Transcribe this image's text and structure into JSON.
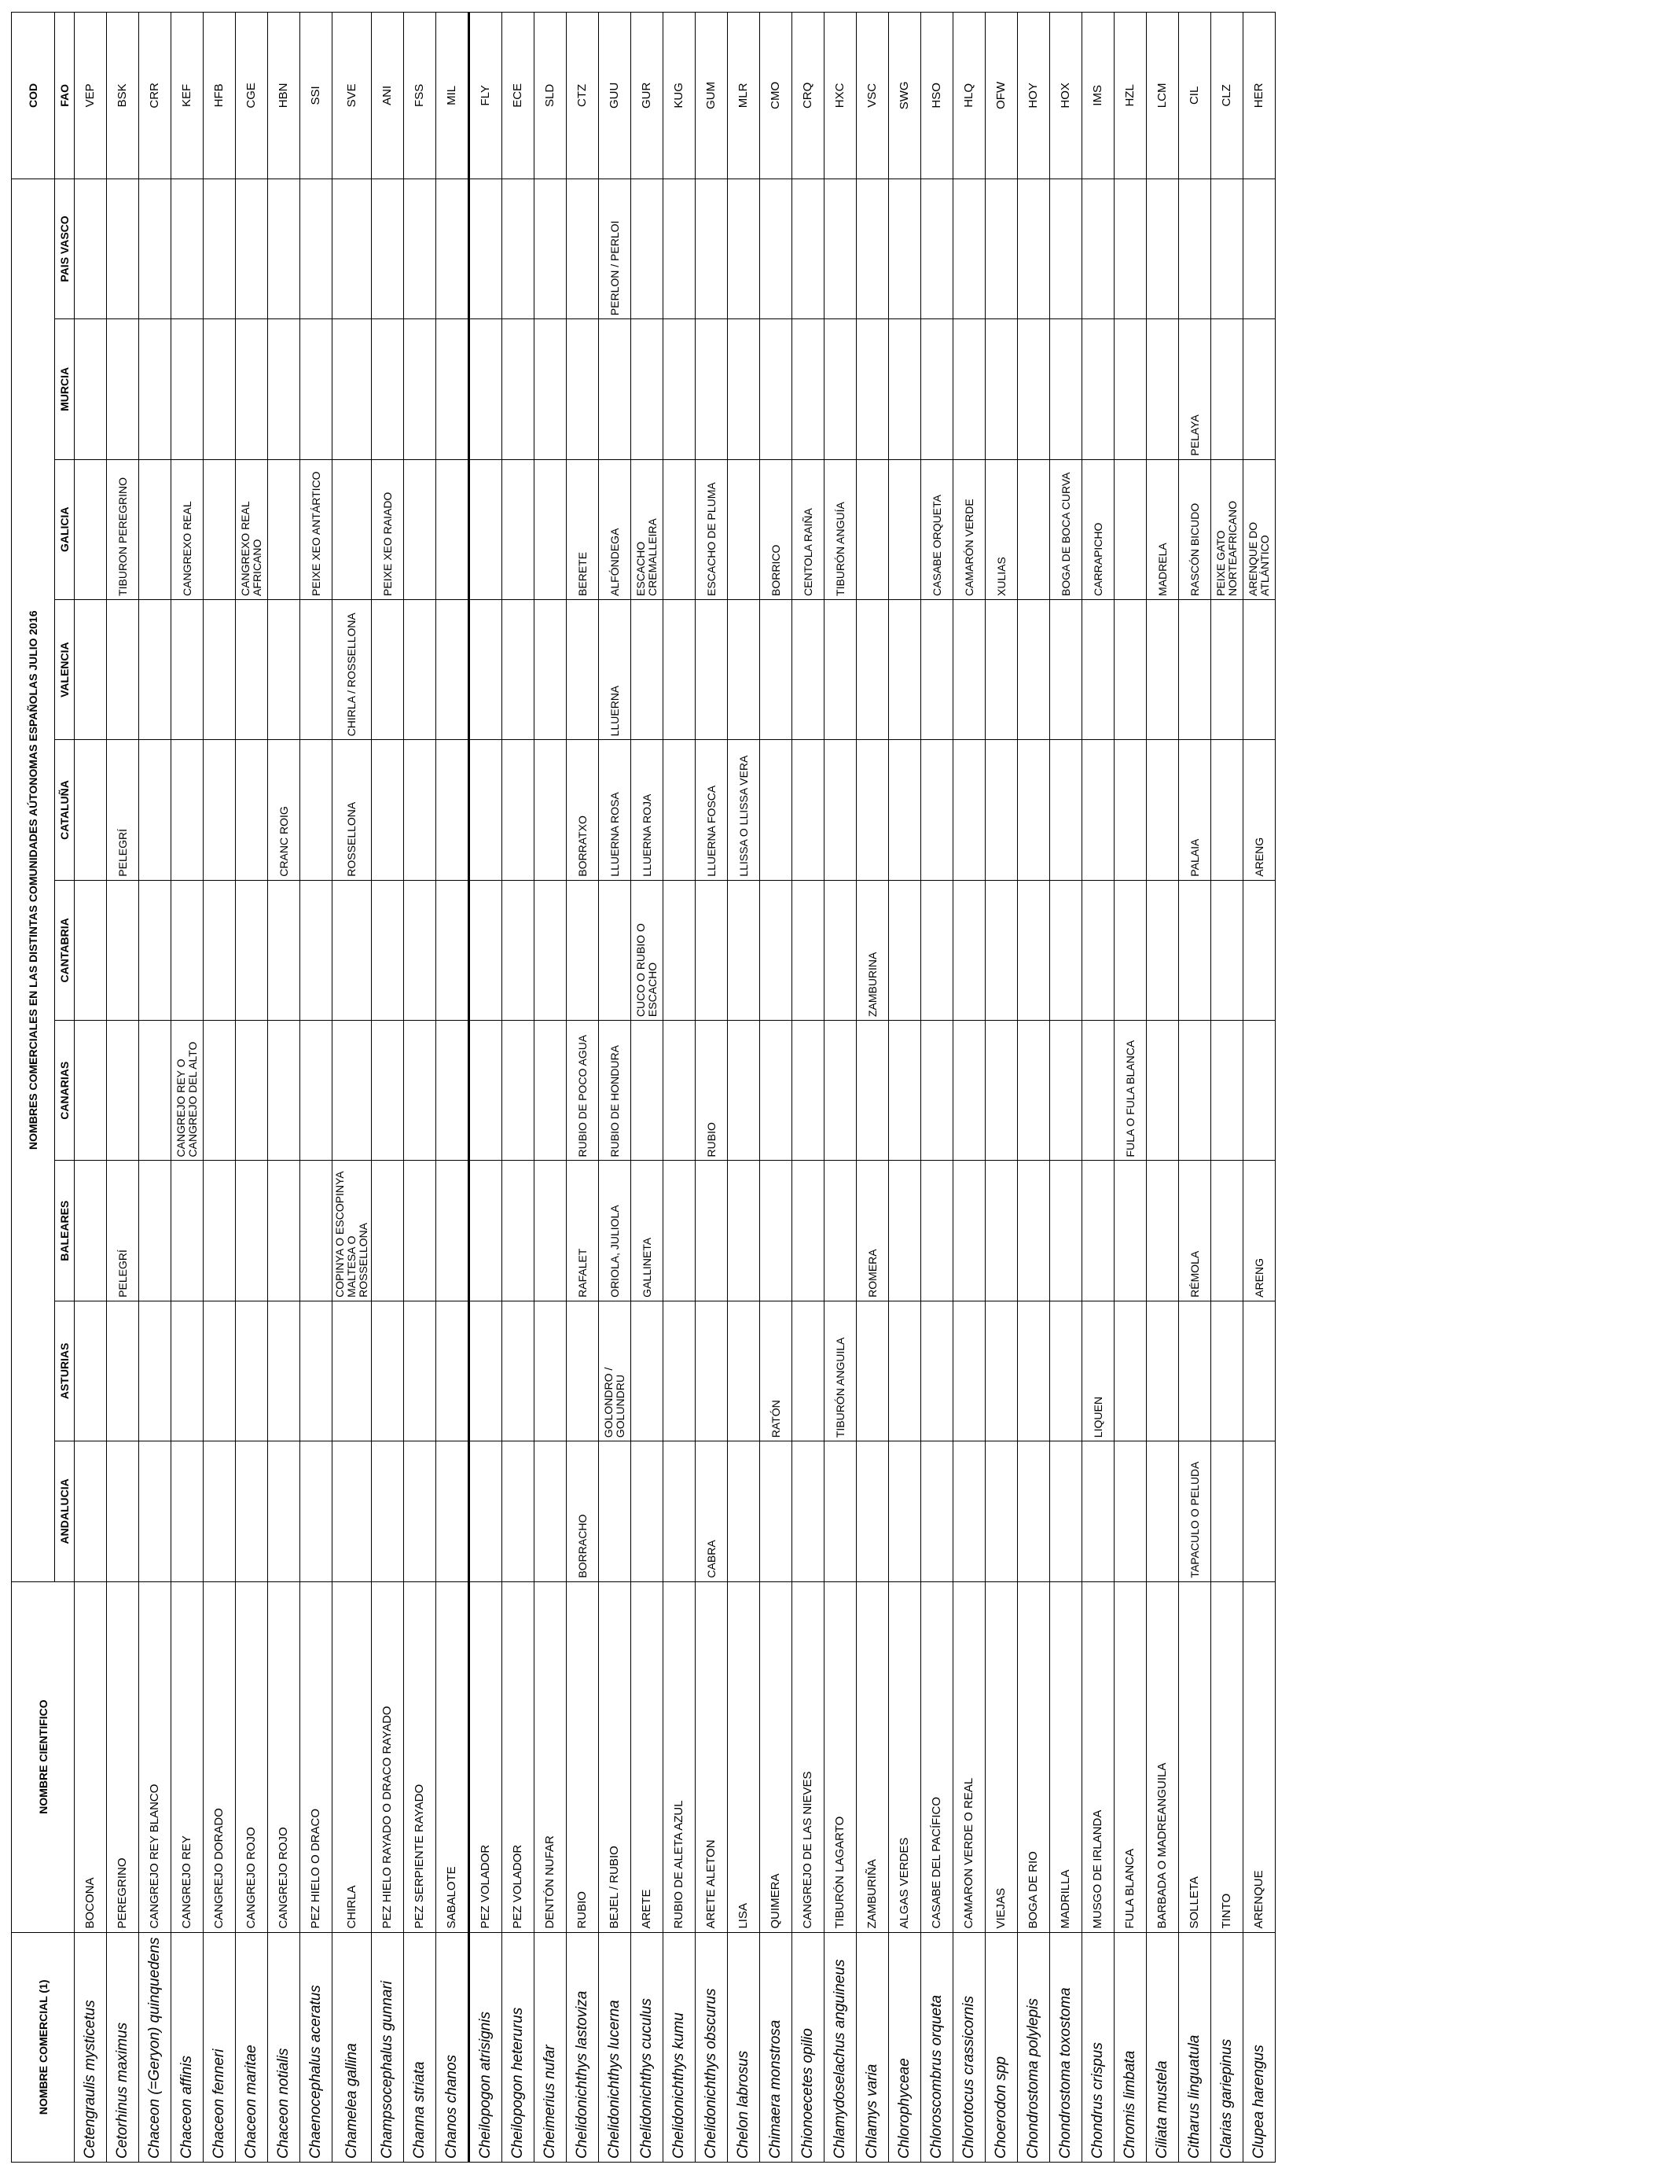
{
  "headers": {
    "comercial": "NOMBRE COMERCIAL (1)",
    "cientifico": "NOMBRE CIENTIFICO",
    "group": "NOMBRES COMERCIALES EN LAS DISTINTAS COMUNIDADES AÚTONOMAS ESPAÑOLAS JULIO 2016",
    "cod": "COD",
    "regions": [
      "ANDALUCIA",
      "ASTURIAS",
      "BALEARES",
      "CANARIAS",
      "CANTABRIA",
      "CATALUÑA",
      "VALENCIA",
      "GALICIA",
      "MURCIA",
      "PAIS VASCO"
    ],
    "fao": "FAO"
  },
  "rows": [
    {
      "sci": "Cetengraulis mysticetus",
      "name": "BOCONA",
      "reg": [
        "",
        "",
        "",
        "",
        "",
        "",
        "",
        "",
        "",
        ""
      ],
      "fao": "VEP"
    },
    {
      "sci": "Cetorhinus maximus",
      "name": "PEREGRINO",
      "reg": [
        "",
        "",
        "PELEGRÍ",
        "",
        "",
        "PELEGRÍ",
        "",
        "TIBURON PEREGRINO",
        "",
        ""
      ],
      "fao": "BSK"
    },
    {
      "sci": "Chaceon (=Geryon) quinquedens",
      "name": "CANGREJO REY BLANCO",
      "reg": [
        "",
        "",
        "",
        "",
        "",
        "",
        "",
        "",
        "",
        ""
      ],
      "fao": "CRR"
    },
    {
      "sci": "Chaceon affinis",
      "name": "CANGREJO REY",
      "reg": [
        "",
        "",
        "",
        "CANGREJO REY O CANGREJO DEL ALTO",
        "",
        "",
        "",
        "CANGREXO REAL",
        "",
        ""
      ],
      "fao": "KEF"
    },
    {
      "sci": "Chaceon fenneri",
      "name": "CANGREJO DORADO",
      "reg": [
        "",
        "",
        "",
        "",
        "",
        "",
        "",
        "",
        "",
        ""
      ],
      "fao": "HFB"
    },
    {
      "sci": "Chaceon maritae",
      "name": "CANGREJO ROJO",
      "reg": [
        "",
        "",
        "",
        "",
        "",
        "",
        "",
        "CANGREXO REAL AFRICANO",
        "",
        ""
      ],
      "fao": "CGE"
    },
    {
      "sci": "Chaceon notialis",
      "name": "CANGREJO ROJO",
      "reg": [
        "",
        "",
        "",
        "",
        "",
        "CRANC ROIG",
        "",
        "",
        "",
        ""
      ],
      "fao": "HBN"
    },
    {
      "sci": "Chaenocephalus aceratus",
      "name": "PEZ HIELO O DRACO",
      "reg": [
        "",
        "",
        "",
        "",
        "",
        "",
        "",
        "PEIXE XEO ANTÁRTICO",
        "",
        ""
      ],
      "fao": "SSI"
    },
    {
      "sci": "Chamelea gallina",
      "name": "CHIRLA",
      "reg": [
        "",
        "",
        "COPINYA O ESCOPINYA MALTESA O ROSSELLONA",
        "",
        "",
        "ROSSELLONA",
        "CHIRLA / ROSSELLONA",
        "",
        "",
        ""
      ],
      "fao": "SVE"
    },
    {
      "sci": "Champsocephalus gunnari",
      "name": "PEZ HIELO RAYADO O DRACO RAYADO",
      "reg": [
        "",
        "",
        "",
        "",
        "",
        "",
        "",
        "PEIXE XEO RAIADO",
        "",
        ""
      ],
      "fao": "ANI"
    },
    {
      "sci": "Channa striata",
      "name": "PEZ SERPIENTE RAYADO",
      "reg": [
        "",
        "",
        "",
        "",
        "",
        "",
        "",
        "",
        "",
        ""
      ],
      "fao": "FSS"
    },
    {
      "sci": "Chanos chanos",
      "name": "SABALOTE",
      "reg": [
        "",
        "",
        "",
        "",
        "",
        "",
        "",
        "",
        "",
        ""
      ],
      "fao": "MIL"
    },
    {
      "sci": "Cheilopogon atrisignis",
      "name": "PEZ VOLADOR",
      "reg": [
        "",
        "",
        "",
        "",
        "",
        "",
        "",
        "",
        "",
        ""
      ],
      "fao": "FLY"
    },
    {
      "sci": "Cheilopogon heterurus",
      "name": "PEZ VOLADOR",
      "reg": [
        "",
        "",
        "",
        "",
        "",
        "",
        "",
        "",
        "",
        ""
      ],
      "fao": "ECE"
    },
    {
      "sci": "Cheimerius nufar",
      "name": "DENTÓN NUFAR",
      "reg": [
        "",
        "",
        "",
        "",
        "",
        "",
        "",
        "",
        "",
        ""
      ],
      "fao": "SLD"
    },
    {
      "sci": "Chelidonichthys lastoviza",
      "name": "RUBIO",
      "reg": [
        "BORRACHO",
        "",
        "RAFALET",
        "RUBIO DE POCO AGUA",
        "",
        "BORRATXO",
        "",
        "BERETE",
        "",
        ""
      ],
      "fao": "CTZ"
    },
    {
      "sci": "Chelidonichthys lucerna",
      "name": "BEJEL / RUBIO",
      "reg": [
        "",
        "GOLONDRO / GOLUNDRU",
        "ORIOLA, JULIOLA",
        "RUBIO DE HONDURA",
        "",
        "LLUERNA ROSA",
        "LLUERNA",
        "ALFÓNDEGA",
        "",
        "PERLON / PERLOI"
      ],
      "fao": "GUU"
    },
    {
      "sci": "Chelidonichthys cuculus",
      "name": "ARETE",
      "reg": [
        "",
        "",
        "GALLINETA",
        "",
        "CUCO O RUBIO O ESCACHO",
        "LLUERNA ROJA",
        "",
        "ESCACHO CREMALLEIRA",
        "",
        ""
      ],
      "fao": "GUR"
    },
    {
      "sci": "Chelidonichthys kumu",
      "name": "RUBIO DE ALETA AZUL",
      "reg": [
        "",
        "",
        "",
        "",
        "",
        "",
        "",
        "",
        "",
        ""
      ],
      "fao": "KUG"
    },
    {
      "sci": "Chelidonichthys obscurus",
      "name": "ARETE ALETON",
      "reg": [
        "CABRA",
        "",
        "",
        "RUBIO",
        "",
        "LLUERNA FOSCA",
        "",
        "ESCACHO DE PLUMA",
        "",
        ""
      ],
      "fao": "GUM"
    },
    {
      "sci": "Chelon labrosus",
      "name": "LISA",
      "reg": [
        "",
        "",
        "",
        "",
        "",
        "LLISSA O LLISSA VERA",
        "",
        "",
        "",
        ""
      ],
      "fao": "MLR"
    },
    {
      "sci": "Chimaera monstrosa",
      "name": "QUIMERA",
      "reg": [
        "",
        "RATÓN",
        "",
        "",
        "",
        "",
        "",
        "BORRICO",
        "",
        ""
      ],
      "fao": "CMO"
    },
    {
      "sci": "Chionoecetes opilio",
      "name": "CANGREJO DE LAS NIEVES",
      "reg": [
        "",
        "",
        "",
        "",
        "",
        "",
        "",
        "CENTOLA RAIÑA",
        "",
        ""
      ],
      "fao": "CRQ"
    },
    {
      "sci": "Chlamydoselachus anguineus",
      "name": "TIBURÓN LAGARTO",
      "reg": [
        "",
        "TIBURÓN ANGUILA",
        "",
        "",
        "",
        "",
        "",
        "TIBURÓN ANGUÍA",
        "",
        ""
      ],
      "fao": "HXC"
    },
    {
      "sci": "Chlamys varia",
      "name": "ZAMBURIÑA",
      "reg": [
        "",
        "",
        "ROMERA",
        "",
        "ZAMBURINA",
        "",
        "",
        "",
        "",
        ""
      ],
      "fao": "VSC"
    },
    {
      "sci": "Chlorophyceae",
      "name": "ALGAS VERDES",
      "reg": [
        "",
        "",
        "",
        "",
        "",
        "",
        "",
        "",
        "",
        ""
      ],
      "fao": "SWG"
    },
    {
      "sci": "Chloroscombrus orqueta",
      "name": "CASABE DEL PACÍFICO",
      "reg": [
        "",
        "",
        "",
        "",
        "",
        "",
        "",
        "CASABE ORQUETA",
        "",
        ""
      ],
      "fao": "HSO"
    },
    {
      "sci": "Chlorotocus crassicornis",
      "name": "CAMARON VERDE O REAL",
      "reg": [
        "",
        "",
        "",
        "",
        "",
        "",
        "",
        "CAMARÓN VERDE",
        "",
        ""
      ],
      "fao": "HLQ"
    },
    {
      "sci": "Choerodon spp",
      "name": "VIEJAS",
      "reg": [
        "",
        "",
        "",
        "",
        "",
        "",
        "",
        "XULIAS",
        "",
        ""
      ],
      "fao": "OFW"
    },
    {
      "sci": "Chondrostoma polylepis",
      "name": "BOGA DE RIO",
      "reg": [
        "",
        "",
        "",
        "",
        "",
        "",
        "",
        "",
        "",
        ""
      ],
      "fao": "HOY"
    },
    {
      "sci": "Chondrostoma toxostoma",
      "name": "MADRILLA",
      "reg": [
        "",
        "",
        "",
        "",
        "",
        "",
        "",
        "BOGA DE BOCA CURVA",
        "",
        ""
      ],
      "fao": "HOX"
    },
    {
      "sci": "Chondrus crispus",
      "name": "MUSGO DE IRLANDA",
      "reg": [
        "",
        "LIQUEN",
        "",
        "",
        "",
        "",
        "",
        "CARRAPICHO",
        "",
        ""
      ],
      "fao": "IMS"
    },
    {
      "sci": "Chromis limbata",
      "name": "FULA BLANCA",
      "reg": [
        "",
        "",
        "",
        "FULA O FULA BLANCA",
        "",
        "",
        "",
        "",
        "",
        ""
      ],
      "fao": "HZL"
    },
    {
      "sci": "Ciliata mustela",
      "name": "BARBADA O MADREANGUILA",
      "reg": [
        "",
        "",
        "",
        "",
        "",
        "",
        "",
        "MADRELA",
        "",
        ""
      ],
      "fao": "LCM"
    },
    {
      "sci": "Citharus linguatula",
      "name": "SOLLETA",
      "reg": [
        "TAPACULO O PELUDA",
        "",
        "RÉMOLA",
        "",
        "",
        "PALAIA",
        "",
        "RASCÓN BICUDO",
        "PELAYA",
        ""
      ],
      "fao": "CIL"
    },
    {
      "sci": "Clarias gariepinus",
      "name": "TINTO",
      "reg": [
        "",
        "",
        "",
        "",
        "",
        "",
        "",
        "PEIXE GATO NORTEAFRICANO",
        "",
        ""
      ],
      "fao": "CLZ"
    },
    {
      "sci": "Clupea harengus",
      "name": "ARENQUE",
      "reg": [
        "",
        "",
        "ARENG",
        "",
        "",
        "ARENG",
        "",
        "ARENQUE DO ATLÁNTICO",
        "",
        ""
      ],
      "fao": "HER"
    }
  ]
}
